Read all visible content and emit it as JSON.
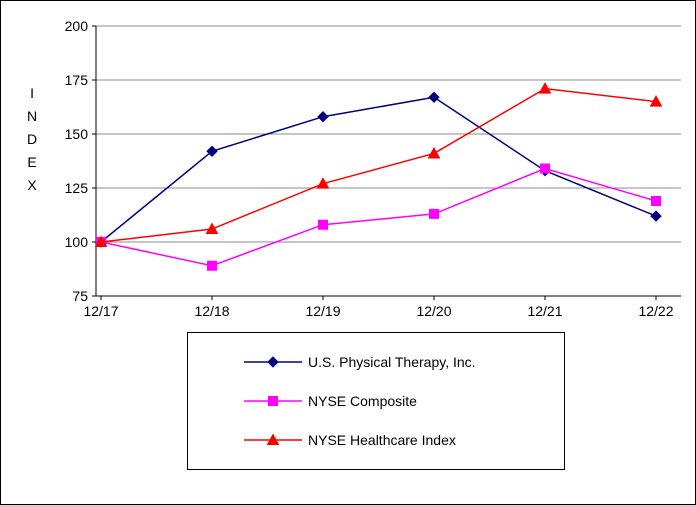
{
  "chart_data": {
    "type": "line",
    "x": [
      "12/17",
      "12/18",
      "12/19",
      "12/20",
      "12/21",
      "12/22"
    ],
    "series": [
      {
        "name": "U.S. Physical Therapy, Inc.",
        "color": "#000080",
        "marker": "diamond",
        "values": [
          100,
          142,
          158,
          167,
          133,
          112
        ]
      },
      {
        "name": "NYSE Composite",
        "color": "#FF00FF",
        "marker": "square",
        "values": [
          100,
          89,
          108,
          113,
          134,
          119
        ]
      },
      {
        "name": "NYSE Healthcare Index",
        "color": "#FF0000",
        "marker": "triangle",
        "values": [
          100,
          106,
          127,
          141,
          171,
          165
        ]
      }
    ],
    "title": "",
    "xlabel": "",
    "ylabel": "INDEX",
    "ylim": [
      75,
      200
    ],
    "yticks": [
      75,
      100,
      125,
      150,
      175,
      200
    ],
    "grid": true,
    "grid_color": "#8c8c8c",
    "axis_color": "#000000",
    "legend_position": "bottom"
  }
}
